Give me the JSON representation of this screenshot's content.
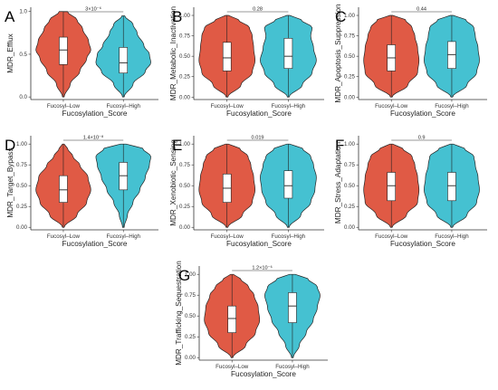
{
  "chart_data": [
    {
      "type": "violin",
      "panel": "A",
      "ylabel": "MDR_Efflux",
      "xlabel": "Fucosylation_Score",
      "categories": [
        "Fucosyl–Low",
        "Fucosyl–High"
      ],
      "yticks": [
        "0.0",
        "0.5",
        "1.0"
      ],
      "ylim": [
        -0.03,
        1.05
      ],
      "pvalue": "3×10⁻⁶",
      "colors": [
        "#e05a45",
        "#45c1d1"
      ],
      "groups": [
        {
          "name": "Fucosyl–Low",
          "min": 0.0,
          "q1": 0.38,
          "median": 0.55,
          "q3": 0.7,
          "max": 1.0,
          "density": [
            [
              0.0,
              0.03
            ],
            [
              0.15,
              0.25
            ],
            [
              0.3,
              0.6
            ],
            [
              0.45,
              0.85
            ],
            [
              0.55,
              1.0
            ],
            [
              0.65,
              0.92
            ],
            [
              0.8,
              0.7
            ],
            [
              0.9,
              0.5
            ],
            [
              1.0,
              0.15
            ]
          ]
        },
        {
          "name": "Fucosyl–High",
          "min": 0.0,
          "q1": 0.28,
          "median": 0.4,
          "q3": 0.58,
          "max": 0.95,
          "density": [
            [
              0.0,
              0.03
            ],
            [
              0.15,
              0.35
            ],
            [
              0.3,
              0.8
            ],
            [
              0.4,
              1.0
            ],
            [
              0.5,
              0.95
            ],
            [
              0.6,
              0.75
            ],
            [
              0.75,
              0.5
            ],
            [
              0.85,
              0.35
            ],
            [
              0.95,
              0.05
            ]
          ]
        }
      ]
    },
    {
      "type": "violin",
      "panel": "B",
      "ylabel": "MDR_Metabolic_Inactivation",
      "xlabel": "Fucosylation_Score",
      "categories": [
        "Fucosyl–Low",
        "Fucosyl–High"
      ],
      "yticks": [
        "0.00",
        "0.25",
        "0.50",
        "0.75",
        "1.00"
      ],
      "ylim": [
        -0.03,
        1.1
      ],
      "pvalue": "0.28",
      "colors": [
        "#e05a45",
        "#45c1d1"
      ],
      "groups": [
        {
          "name": "Fucosyl–Low",
          "min": 0.0,
          "q1": 0.32,
          "median": 0.48,
          "q3": 0.67,
          "max": 1.0,
          "density": [
            [
              0.0,
              0.03
            ],
            [
              0.15,
              0.5
            ],
            [
              0.3,
              0.9
            ],
            [
              0.45,
              1.0
            ],
            [
              0.6,
              0.95
            ],
            [
              0.75,
              0.9
            ],
            [
              0.85,
              0.8
            ],
            [
              0.95,
              0.4
            ],
            [
              1.0,
              0.05
            ]
          ]
        },
        {
          "name": "Fucosyl–High",
          "min": 0.0,
          "q1": 0.35,
          "median": 0.5,
          "q3": 0.72,
          "max": 1.0,
          "density": [
            [
              0.0,
              0.03
            ],
            [
              0.15,
              0.5
            ],
            [
              0.3,
              0.85
            ],
            [
              0.45,
              1.0
            ],
            [
              0.6,
              0.9
            ],
            [
              0.75,
              0.8
            ],
            [
              0.85,
              0.85
            ],
            [
              0.95,
              0.45
            ],
            [
              1.0,
              0.05
            ]
          ]
        }
      ]
    },
    {
      "type": "violin",
      "panel": "C",
      "ylabel": "MDR_Apoptosis_Suppression",
      "xlabel": "Fucosylation_Score",
      "categories": [
        "Fucosyl–Low",
        "Fucosyl–High"
      ],
      "yticks": [
        "0.00",
        "0.25",
        "0.50",
        "0.75",
        "1.00"
      ],
      "ylim": [
        -0.03,
        1.1
      ],
      "pvalue": "0.44",
      "colors": [
        "#e05a45",
        "#45c1d1"
      ],
      "groups": [
        {
          "name": "Fucosyl–Low",
          "min": 0.0,
          "q1": 0.32,
          "median": 0.48,
          "q3": 0.64,
          "max": 1.0,
          "density": [
            [
              0.0,
              0.03
            ],
            [
              0.15,
              0.6
            ],
            [
              0.3,
              0.95
            ],
            [
              0.45,
              1.0
            ],
            [
              0.6,
              0.95
            ],
            [
              0.75,
              0.85
            ],
            [
              0.85,
              0.75
            ],
            [
              0.95,
              0.5
            ],
            [
              1.0,
              0.05
            ]
          ]
        },
        {
          "name": "Fucosyl–High",
          "min": 0.0,
          "q1": 0.35,
          "median": 0.52,
          "q3": 0.68,
          "max": 1.0,
          "density": [
            [
              0.0,
              0.03
            ],
            [
              0.15,
              0.55
            ],
            [
              0.3,
              0.9
            ],
            [
              0.45,
              1.0
            ],
            [
              0.6,
              0.95
            ],
            [
              0.75,
              0.85
            ],
            [
              0.85,
              0.8
            ],
            [
              0.95,
              0.5
            ],
            [
              1.0,
              0.05
            ]
          ]
        }
      ]
    },
    {
      "type": "violin",
      "panel": "D",
      "ylabel": "MDR_Target_Bypass",
      "xlabel": "Fucosylation_Score",
      "categories": [
        "Fucosyl–Low",
        "Fucosyl–High"
      ],
      "yticks": [
        "0.00",
        "0.25",
        "0.50",
        "0.75",
        "1.00"
      ],
      "ylim": [
        -0.03,
        1.1
      ],
      "pvalue": "1.4×10⁻⁸",
      "colors": [
        "#e05a45",
        "#45c1d1"
      ],
      "groups": [
        {
          "name": "Fucosyl–Low",
          "min": 0.0,
          "q1": 0.3,
          "median": 0.45,
          "q3": 0.62,
          "max": 1.0,
          "density": [
            [
              0.0,
              0.03
            ],
            [
              0.15,
              0.5
            ],
            [
              0.3,
              0.85
            ],
            [
              0.45,
              1.0
            ],
            [
              0.6,
              0.9
            ],
            [
              0.75,
              0.6
            ],
            [
              0.85,
              0.35
            ],
            [
              0.95,
              0.15
            ],
            [
              1.0,
              0.03
            ]
          ]
        },
        {
          "name": "Fucosyl–High",
          "min": 0.0,
          "q1": 0.45,
          "median": 0.62,
          "q3": 0.78,
          "max": 1.0,
          "density": [
            [
              0.0,
              0.03
            ],
            [
              0.15,
              0.15
            ],
            [
              0.3,
              0.35
            ],
            [
              0.45,
              0.6
            ],
            [
              0.6,
              0.8
            ],
            [
              0.75,
              0.95
            ],
            [
              0.85,
              1.0
            ],
            [
              0.95,
              0.7
            ],
            [
              1.0,
              0.1
            ]
          ]
        }
      ]
    },
    {
      "type": "violin",
      "panel": "E",
      "ylabel": "MDR_Xenobiotic_Sensing",
      "xlabel": "Fucosylation_Score",
      "categories": [
        "Fucosyl–Low",
        "Fucosyl–High"
      ],
      "yticks": [
        "0.00",
        "0.25",
        "0.50",
        "0.75",
        "1.00"
      ],
      "ylim": [
        -0.03,
        1.1
      ],
      "pvalue": "0.019",
      "colors": [
        "#e05a45",
        "#45c1d1"
      ],
      "groups": [
        {
          "name": "Fucosyl–Low",
          "min": 0.0,
          "q1": 0.3,
          "median": 0.47,
          "q3": 0.64,
          "max": 1.0,
          "density": [
            [
              0.0,
              0.03
            ],
            [
              0.15,
              0.55
            ],
            [
              0.3,
              0.9
            ],
            [
              0.45,
              1.0
            ],
            [
              0.6,
              0.95
            ],
            [
              0.75,
              0.85
            ],
            [
              0.85,
              0.75
            ],
            [
              0.95,
              0.45
            ],
            [
              1.0,
              0.05
            ]
          ]
        },
        {
          "name": "Fucosyl–High",
          "min": 0.0,
          "q1": 0.35,
          "median": 0.5,
          "q3": 0.68,
          "max": 1.0,
          "density": [
            [
              0.0,
              0.03
            ],
            [
              0.15,
              0.45
            ],
            [
              0.3,
              0.8
            ],
            [
              0.45,
              0.95
            ],
            [
              0.6,
              1.0
            ],
            [
              0.75,
              0.9
            ],
            [
              0.85,
              0.8
            ],
            [
              0.95,
              0.5
            ],
            [
              1.0,
              0.05
            ]
          ]
        }
      ]
    },
    {
      "type": "violin",
      "panel": "F",
      "ylabel": "MDR_Stress_Adaptation",
      "xlabel": "Fucosylation_Score",
      "categories": [
        "Fucosyl–Low",
        "Fucosyl–High"
      ],
      "yticks": [
        "0.00",
        "0.25",
        "0.50",
        "0.75",
        "1.00"
      ],
      "ylim": [
        -0.03,
        1.1
      ],
      "pvalue": "0.9",
      "colors": [
        "#e05a45",
        "#45c1d1"
      ],
      "groups": [
        {
          "name": "Fucosyl–Low",
          "min": 0.0,
          "q1": 0.32,
          "median": 0.5,
          "q3": 0.66,
          "max": 1.0,
          "density": [
            [
              0.0,
              0.03
            ],
            [
              0.15,
              0.55
            ],
            [
              0.3,
              0.95
            ],
            [
              0.45,
              1.0
            ],
            [
              0.6,
              0.95
            ],
            [
              0.75,
              0.85
            ],
            [
              0.85,
              0.75
            ],
            [
              0.95,
              0.4
            ],
            [
              1.0,
              0.05
            ]
          ]
        },
        {
          "name": "Fucosyl–High",
          "min": 0.0,
          "q1": 0.32,
          "median": 0.5,
          "q3": 0.66,
          "max": 1.0,
          "density": [
            [
              0.0,
              0.03
            ],
            [
              0.15,
              0.55
            ],
            [
              0.3,
              0.9
            ],
            [
              0.45,
              1.0
            ],
            [
              0.6,
              0.95
            ],
            [
              0.75,
              0.85
            ],
            [
              0.85,
              0.8
            ],
            [
              0.95,
              0.45
            ],
            [
              1.0,
              0.05
            ]
          ]
        }
      ]
    },
    {
      "type": "violin",
      "panel": "G",
      "ylabel": "MDR_Trafficking_Sequestration",
      "xlabel": "Fucosylation_Score",
      "categories": [
        "Fucosyl–Low",
        "Fucosyl–High"
      ],
      "yticks": [
        "0.00",
        "0.25",
        "0.50",
        "0.75",
        "1.00"
      ],
      "ylim": [
        -0.03,
        1.1
      ],
      "pvalue": "1.2×10⁻⁶",
      "colors": [
        "#e05a45",
        "#45c1d1"
      ],
      "groups": [
        {
          "name": "Fucosyl–Low",
          "min": 0.0,
          "q1": 0.3,
          "median": 0.47,
          "q3": 0.62,
          "max": 1.0,
          "density": [
            [
              0.0,
              0.03
            ],
            [
              0.15,
              0.5
            ],
            [
              0.3,
              0.85
            ],
            [
              0.45,
              1.0
            ],
            [
              0.6,
              0.95
            ],
            [
              0.75,
              0.8
            ],
            [
              0.85,
              0.6
            ],
            [
              0.95,
              0.3
            ],
            [
              1.0,
              0.05
            ]
          ]
        },
        {
          "name": "Fucosyl–High",
          "min": 0.0,
          "q1": 0.42,
          "median": 0.62,
          "q3": 0.78,
          "max": 1.0,
          "density": [
            [
              0.0,
              0.03
            ],
            [
              0.15,
              0.25
            ],
            [
              0.3,
              0.5
            ],
            [
              0.45,
              0.75
            ],
            [
              0.6,
              0.9
            ],
            [
              0.75,
              1.0
            ],
            [
              0.85,
              0.9
            ],
            [
              0.95,
              0.55
            ],
            [
              1.0,
              0.1
            ]
          ]
        }
      ]
    }
  ]
}
